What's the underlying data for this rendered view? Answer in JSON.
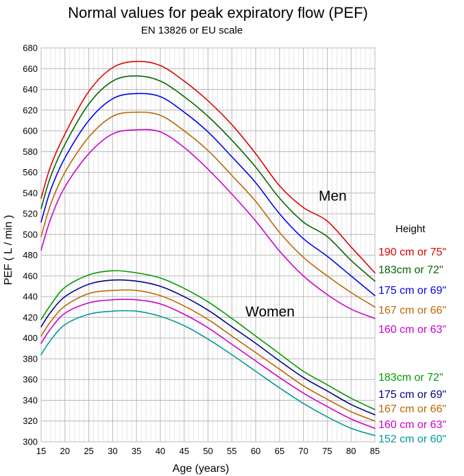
{
  "chart_data": {
    "type": "line",
    "title": "Normal values for peak expiratory flow (PEF)",
    "subtitle": "EN 13826 or EU scale",
    "xlabel": "Age (years)",
    "ylabel": "PEF ( L / min )",
    "xlim": [
      15,
      85
    ],
    "ylim": [
      300,
      680
    ],
    "x_ticks": [
      15,
      20,
      25,
      30,
      35,
      40,
      45,
      50,
      55,
      60,
      65,
      70,
      75,
      80,
      85
    ],
    "y_ticks": [
      300,
      320,
      340,
      360,
      380,
      400,
      420,
      440,
      460,
      480,
      500,
      520,
      540,
      560,
      580,
      600,
      620,
      640,
      660,
      680
    ],
    "grid": true,
    "x": [
      15,
      17,
      20,
      25,
      30,
      35,
      40,
      45,
      50,
      55,
      60,
      65,
      70,
      75,
      80,
      85
    ],
    "legend_title": "Height",
    "group_labels": [
      "Men",
      "Women"
    ],
    "groups": [
      {
        "name": "Men",
        "series": [
          {
            "name": "190 cm or 75\"",
            "color": "#dd0000",
            "values": [
              535,
              566,
              597,
              638,
              661,
              667,
              663,
              648,
              629,
              606,
              578,
              547,
              526,
              513,
              488,
              463
            ]
          },
          {
            "name": "183cm or 72\"",
            "color": "#006600",
            "values": [
              525,
              556,
              587,
              626,
              648,
              653,
              648,
              633,
              614,
              591,
              565,
              535,
              512,
              498,
              475,
              455
            ]
          },
          {
            "name": "175 cm or 69\"",
            "color": "#0000ee",
            "values": [
              512,
              543,
              574,
              610,
              631,
              636,
              633,
              618,
              599,
              575,
              550,
              520,
              496,
              479,
              460,
              441
            ]
          },
          {
            "name": "167 cm or 66\"",
            "color": "#bb6600",
            "values": [
              498,
              529,
              560,
              594,
              614,
              618,
              615,
              600,
              581,
              557,
              532,
              502,
              478,
              460,
              444,
              430
            ]
          },
          {
            "name": "160 cm or 63\"",
            "color": "#cc00cc",
            "values": [
              485,
              515,
              546,
              578,
              597,
              601,
              599,
              584,
              563,
              539,
              513,
              484,
              460,
              442,
              428,
              419
            ]
          }
        ]
      },
      {
        "name": "Women",
        "series": [
          {
            "name": "183cm or 72\"",
            "color": "#009900",
            "values": [
              418,
              432,
              449,
              461,
              465,
              463,
              458,
              448,
              435,
              419,
              402,
              385,
              368,
              355,
              342,
              331
            ]
          },
          {
            "name": "175 cm or 69\"",
            "color": "#000088",
            "values": [
              411,
              425,
              440,
              452,
              456,
              455,
              450,
              440,
              427,
              411,
              395,
              378,
              362,
              349,
              336,
              326
            ]
          },
          {
            "name": "167 cm or 66\"",
            "color": "#bb6600",
            "values": [
              402,
              416,
              431,
              443,
              446,
              446,
              441,
              431,
              418,
              402,
              386,
              370,
              354,
              341,
              329,
              320
            ]
          },
          {
            "name": "160 cm or 63\"",
            "color": "#cc00cc",
            "values": [
              395,
              409,
              424,
              434,
              437,
              437,
              433,
              423,
              410,
              394,
              378,
              362,
              347,
              334,
              322,
              313
            ]
          },
          {
            "name": "152 cm or 60\"",
            "color": "#009999",
            "values": [
              384,
              398,
              413,
              423,
              426,
              426,
              421,
              412,
              399,
              384,
              368,
              352,
              337,
              324,
              313,
              306
            ]
          }
        ]
      }
    ]
  }
}
